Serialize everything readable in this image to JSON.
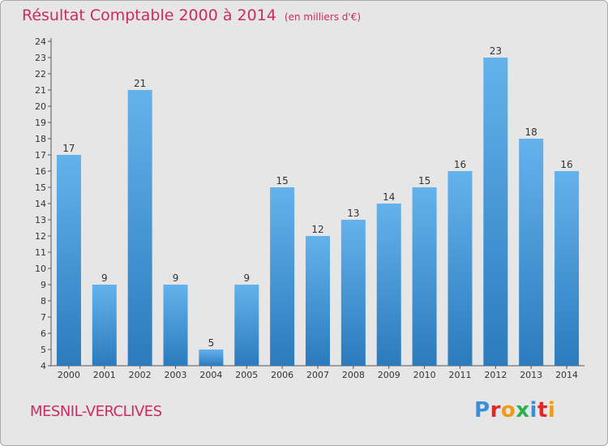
{
  "title": "Résultat Comptable 2000 à 2014",
  "subtitle": "(en milliers d'€)",
  "town": "MESNIL-VERCLIVES",
  "logo": {
    "text": "Proxiti",
    "colors": [
      "#3b8fd6",
      "#e2262a",
      "#f29a16",
      "#2bb14b",
      "#3b8fd6",
      "#e2262a",
      "#f29a16"
    ]
  },
  "colors": {
    "bar_top": "#64b2ec",
    "bar_bottom": "#2b7bbd",
    "title": "#cc2a64",
    "plot_bg": "#e6e6e6"
  },
  "chart_data": {
    "type": "bar",
    "categories": [
      "2000",
      "2001",
      "2002",
      "2003",
      "2004",
      "2005",
      "2006",
      "2007",
      "2008",
      "2009",
      "2010",
      "2011",
      "2012",
      "2013",
      "2014"
    ],
    "values": [
      17,
      9,
      21,
      9,
      5,
      9,
      15,
      12,
      13,
      14,
      15,
      16,
      23,
      18,
      16
    ],
    "title": "Résultat Comptable 2000 à 2014",
    "subtitle": "(en milliers d'€)",
    "xlabel": "",
    "ylabel": "",
    "ylim": [
      4,
      24
    ],
    "yticks": [
      4,
      5,
      6,
      7,
      8,
      9,
      10,
      11,
      12,
      13,
      14,
      15,
      16,
      17,
      18,
      19,
      20,
      21,
      22,
      23,
      24
    ],
    "grid": false,
    "data_labels": true
  }
}
